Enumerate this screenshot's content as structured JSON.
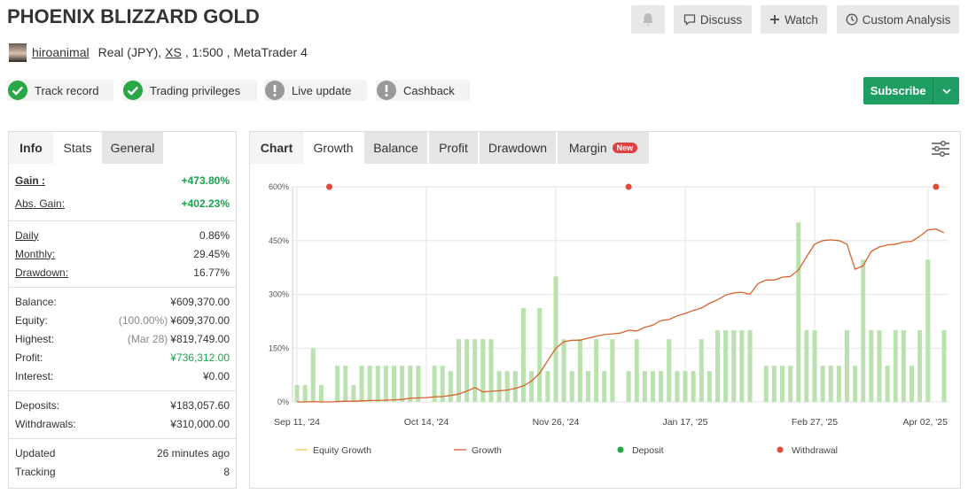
{
  "header": {
    "title": "PHOENIX BLIZZARD GOLD",
    "buttons": [
      "Discuss",
      "Watch",
      "Custom Analysis"
    ],
    "user": "hiroanimal",
    "account": [
      "Real (JPY),",
      "XS",
      ", 1:500 , MetaTrader 4"
    ]
  },
  "badges": [
    "Track record",
    "Trading privileges",
    "Live update",
    "Cashback"
  ],
  "subscribe": "Subscribe",
  "left_tabs": [
    "Info",
    "Stats",
    "General"
  ],
  "stats": [
    [
      {
        "label": "Gain :",
        "value": "+473.80%"
      },
      {
        "label": "Abs. Gain:",
        "value": "+402.23%"
      }
    ],
    [
      {
        "label": "Daily",
        "value": "0.86%"
      },
      {
        "label": "Monthly:",
        "value": "29.45%"
      },
      {
        "label": "Drawdown:",
        "value": "16.77%"
      }
    ],
    [
      {
        "label": "Balance:",
        "value": "¥609,370.00"
      },
      {
        "label": "Equity:",
        "note": "(100.00%)",
        "value": "¥609,370.00"
      },
      {
        "label": "Highest:",
        "note": "(Mar 28)",
        "value": "¥819,749.00"
      },
      {
        "label": "Profit:",
        "value": "¥736,312.00"
      },
      {
        "label": "Interest:",
        "value": "¥0.00"
      }
    ],
    [
      {
        "label": "Deposits:",
        "value": "¥183,057.60"
      },
      {
        "label": "Withdrawals:",
        "value": "¥310,000.00"
      }
    ],
    [
      {
        "label": "Updated",
        "value": "26 minutes ago"
      },
      {
        "label": "Tracking",
        "value": "8"
      }
    ]
  ],
  "chart_tabs": [
    "Chart",
    "Growth",
    "Balance",
    "Profit",
    "Drawdown",
    "Margin"
  ],
  "new_badge": "New",
  "chart_data": {
    "type": "bar-line",
    "categories": [
      "Sep 11, '24",
      null,
      null,
      null,
      null,
      null,
      null,
      null,
      null,
      null,
      null,
      null,
      null,
      null,
      null,
      null,
      "Oct 14, '24",
      null,
      null,
      null,
      null,
      null,
      null,
      null,
      null,
      null,
      null,
      null,
      null,
      null,
      null,
      null,
      "Nov 26, '24",
      null,
      null,
      null,
      null,
      null,
      null,
      null,
      null,
      null,
      null,
      null,
      null,
      null,
      null,
      null,
      "Jan 17, '25",
      null,
      null,
      null,
      null,
      null,
      null,
      null,
      null,
      null,
      null,
      null,
      null,
      null,
      null,
      null,
      "Feb 27, '25",
      null,
      null,
      null,
      null,
      null,
      null,
      null,
      null,
      null,
      null,
      null,
      null,
      null,
      "Apr 02, '25",
      null,
      null
    ],
    "series": [
      {
        "type": "bar",
        "color": "#b9e2ae",
        "values": [
          47,
          47,
          150,
          47,
          null,
          101,
          101,
          47,
          101,
          101,
          101,
          101,
          101,
          101,
          101,
          101,
          null,
          101,
          101,
          86,
          175,
          175,
          175,
          175,
          175,
          86,
          86,
          86,
          262,
          86,
          262,
          86,
          350,
          175,
          86,
          175,
          86,
          175,
          86,
          175,
          null,
          86,
          175,
          86,
          86,
          86,
          175,
          86,
          86,
          86,
          175,
          86,
          200,
          200,
          200,
          200,
          200,
          null,
          101,
          101,
          101,
          101,
          501,
          200,
          200,
          101,
          101,
          101,
          200,
          101,
          397,
          200,
          200,
          101,
          200,
          200,
          101,
          200,
          397,
          null,
          200
        ]
      },
      {
        "type": "line",
        "color": "#d9622b",
        "values": [
          0,
          0,
          1,
          0,
          0,
          1,
          2,
          2,
          3,
          4,
          4,
          5,
          6,
          7,
          10,
          11,
          12,
          14,
          15,
          18,
          22,
          30,
          40,
          28,
          30,
          31,
          33,
          38,
          45,
          58,
          80,
          115,
          150,
          168,
          172,
          172,
          178,
          183,
          188,
          190,
          192,
          200,
          198,
          208,
          214,
          227,
          230,
          240,
          247,
          255,
          262,
          275,
          285,
          298,
          304,
          306,
          300,
          330,
          340,
          340,
          348,
          350,
          368,
          405,
          440,
          450,
          452,
          450,
          440,
          370,
          380,
          420,
          432,
          438,
          440,
          446,
          448,
          462,
          480,
          482,
          472
        ]
      },
      {
        "type": "dot",
        "color": "#e04a3a",
        "values": [
          null,
          null,
          null,
          null,
          600,
          null,
          null,
          null,
          null,
          null,
          null,
          null,
          null,
          null,
          null,
          null,
          null,
          null,
          null,
          null,
          null,
          null,
          null,
          null,
          null,
          null,
          null,
          null,
          null,
          null,
          null,
          null,
          null,
          null,
          null,
          null,
          null,
          null,
          null,
          null,
          null,
          600,
          null,
          null,
          null,
          null,
          null,
          null,
          null,
          null,
          null,
          null,
          null,
          null,
          null,
          null,
          null,
          null,
          null,
          null,
          null,
          null,
          null,
          null,
          null,
          null,
          null,
          null,
          null,
          null,
          null,
          null,
          null,
          null,
          null,
          null,
          null,
          null,
          null,
          600,
          null
        ]
      }
    ],
    "legend": [
      {
        "name": "Equity Growth",
        "color": "#f2d06b",
        "marker": "line"
      },
      {
        "name": "Growth",
        "color": "#e0734e",
        "marker": "line"
      },
      {
        "name": "Deposit",
        "color": "#22a845",
        "marker": "dot"
      },
      {
        "name": "Withdrawal",
        "color": "#e04a3a",
        "marker": "dot"
      }
    ],
    "ylim": [
      0,
      600
    ],
    "yticks": [
      {
        "value": 0,
        "label": "0%"
      },
      {
        "value": 150,
        "label": "150%"
      },
      {
        "value": 300,
        "label": "300%"
      },
      {
        "value": 450,
        "label": "450%"
      },
      {
        "value": 600,
        "label": "600%"
      }
    ],
    "grid": true
  }
}
